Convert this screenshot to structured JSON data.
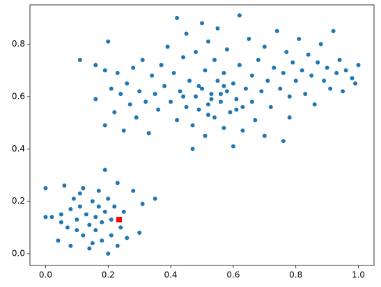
{
  "chart_data": {
    "type": "scatter",
    "xlim": [
      -0.05,
      1.05
    ],
    "ylim": [
      -0.045,
      0.95
    ],
    "xticks": [
      {
        "value": 0,
        "label": "0.0"
      },
      0.2,
      0.4,
      0.6,
      0.8,
      {
        "value": 1,
        "label": "1.0"
      }
    ],
    "yticks": [
      {
        "value": 0,
        "label": "0.0"
      },
      0.2,
      0.4,
      0.6,
      0.8
    ],
    "grid": false,
    "series": [
      {
        "color": "#1f77b4",
        "marker": "circle",
        "x": [
          0,
          0,
          0.02,
          0.04,
          0.05,
          0.05,
          0.06,
          0.07,
          0.08,
          0.08,
          0.09,
          0.1,
          0.1,
          0.11,
          0.11,
          0.12,
          0.12,
          0.13,
          0.14,
          0.14,
          0.15,
          0.16,
          0.16,
          0.17,
          0.17,
          0.18,
          0.18,
          0.19,
          0.19,
          0.2,
          0.2,
          0.21,
          0.21,
          0.22,
          0.23,
          0.24,
          0.25,
          0.26,
          0.28,
          0.3,
          0.31,
          0.35,
          0.23,
          0.15,
          0.11,
          0.16,
          0.16,
          0.19,
          0.2,
          0.19,
          0.21,
          0.22,
          0.23,
          0.24,
          0.25,
          0.26,
          0.27,
          0.28,
          0.29,
          0.3,
          0.31,
          0.32,
          0.33,
          0.34,
          0.35,
          0.36,
          0.37,
          0.38,
          0.39,
          0.4,
          0.41,
          0.42,
          0.42,
          0.43,
          0.44,
          0.45,
          0.45,
          0.46,
          0.47,
          0.47,
          0.48,
          0.48,
          0.49,
          0.5,
          0.5,
          0.51,
          0.51,
          0.52,
          0.52,
          0.53,
          0.54,
          0.54,
          0.55,
          0.55,
          0.56,
          0.57,
          0.57,
          0.58,
          0.58,
          0.59,
          0.6,
          0.6,
          0.61,
          0.62,
          0.62,
          0.63,
          0.63,
          0.64,
          0.65,
          0.66,
          0.66,
          0.67,
          0.68,
          0.69,
          0.7,
          0.7,
          0.71,
          0.72,
          0.73,
          0.74,
          0.75,
          0.76,
          0.76,
          0.77,
          0.78,
          0.78,
          0.79,
          0.8,
          0.81,
          0.82,
          0.83,
          0.84,
          0.85,
          0.86,
          0.87,
          0.88,
          0.89,
          0.9,
          0.91,
          0.92,
          0.93,
          0.94,
          0.95,
          0.96,
          0.98,
          1,
          0.99,
          0.53,
          0.49,
          0.56,
          0.44,
          0.61,
          0.57,
          0.52
        ],
        "y": [
          0.14,
          0.25,
          0.14,
          0.05,
          0.12,
          0.15,
          0.26,
          0.1,
          0.17,
          0.03,
          0.21,
          0.13,
          0.09,
          0.23,
          0.18,
          0.25,
          0.07,
          0.15,
          0.11,
          0.02,
          0.2,
          0.14,
          0.09,
          0.24,
          0.18,
          0.12,
          0.05,
          0.32,
          0.16,
          0.21,
          0,
          0.13,
          0.07,
          0.18,
          0.27,
          0.1,
          0.16,
          0.06,
          0.24,
          0.08,
          0.19,
          0.21,
          0.03,
          0.04,
          0.74,
          0.72,
          0.59,
          0.49,
          0.81,
          0.7,
          0.63,
          0.54,
          0.69,
          0.61,
          0.47,
          0.65,
          0.57,
          0.71,
          0.52,
          0.62,
          0.74,
          0.58,
          0.46,
          0.68,
          0.61,
          0.55,
          0.72,
          0.64,
          0.79,
          0.58,
          0.69,
          0.51,
          0.9,
          0.62,
          0.75,
          0.56,
          0.84,
          0.66,
          0.49,
          0.4,
          0.6,
          0.77,
          0.55,
          0.88,
          0.63,
          0.7,
          0.45,
          0.57,
          0.81,
          0.61,
          0.52,
          0.74,
          0.66,
          0.86,
          0.58,
          0.48,
          0.69,
          0.62,
          0.78,
          0.54,
          0.41,
          0.65,
          0.59,
          0.91,
          0.72,
          0.56,
          0.47,
          0.63,
          0.82,
          0.58,
          0.68,
          0.51,
          0.74,
          0.62,
          0.45,
          0.79,
          0.66,
          0.56,
          0.71,
          0.85,
          0.63,
          0.43,
          0.69,
          0.77,
          0.6,
          0.52,
          0.73,
          0.66,
          0.82,
          0.7,
          0.61,
          0.76,
          0.68,
          0.57,
          0.73,
          0.8,
          0.66,
          0.71,
          0.63,
          0.85,
          0.69,
          0.74,
          0.62,
          0.7,
          0.67,
          0.72,
          0.65,
          0.59,
          0.64,
          0.61,
          0.6,
          0.55,
          0.64,
          0.53
        ]
      },
      {
        "color": "#ff0000",
        "marker": "square",
        "x": [
          0.235
        ],
        "y": [
          0.13
        ]
      }
    ]
  }
}
